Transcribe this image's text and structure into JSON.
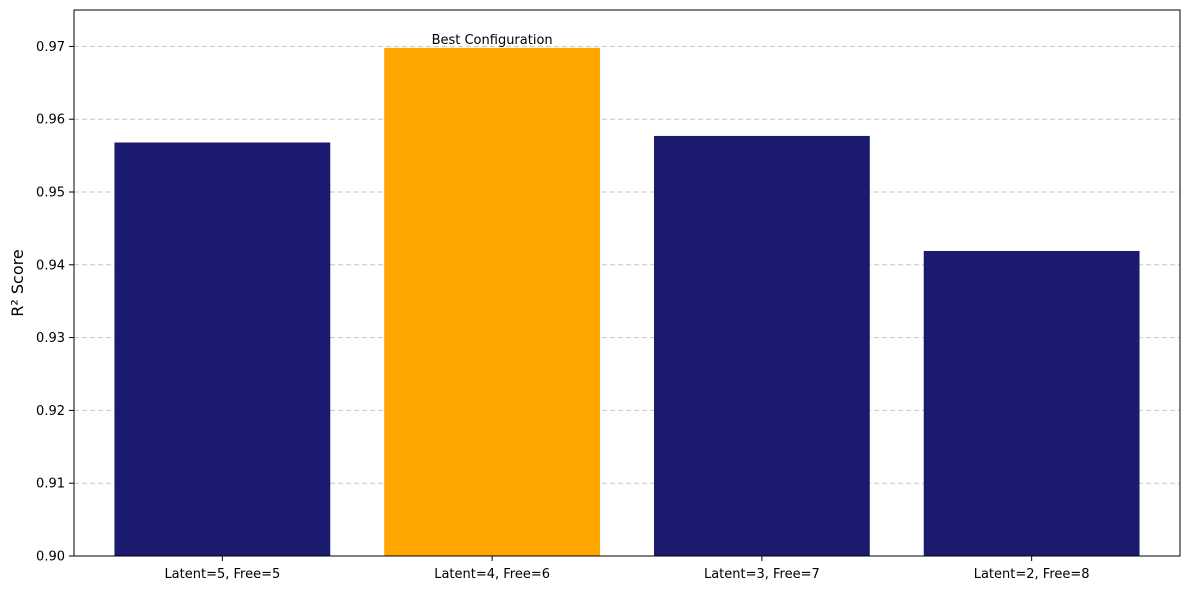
{
  "chart_data": {
    "type": "bar",
    "categories": [
      "Latent=5, Free=5",
      "Latent=4, Free=6",
      "Latent=3, Free=7",
      "Latent=2, Free=8"
    ],
    "values": [
      0.9568,
      0.9698,
      0.9577,
      0.9419
    ],
    "bar_colors": [
      "#1a1a6e",
      "#ffa500",
      "#1a1a6e",
      "#1a1a6e"
    ],
    "title": "",
    "xlabel": "",
    "ylabel": "R² Score",
    "ylim": [
      0.9,
      0.975
    ],
    "yticks": [
      0.9,
      0.91,
      0.92,
      0.93,
      0.94,
      0.95,
      0.96,
      0.97
    ],
    "ytick_labels": [
      "0.90",
      "0.91",
      "0.92",
      "0.93",
      "0.94",
      "0.95",
      "0.96",
      "0.97"
    ],
    "grid": "y-dashed",
    "annotation": {
      "text": "Best Configuration",
      "category_index": 1
    }
  }
}
